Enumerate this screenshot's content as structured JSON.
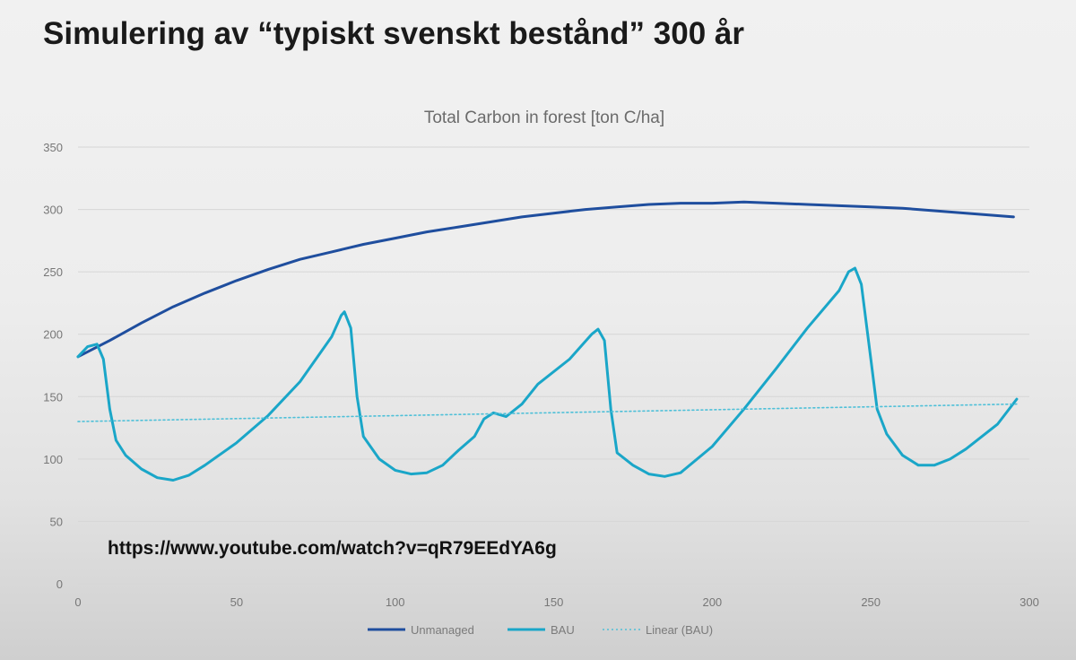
{
  "slide": {
    "title": "Simulering av “typiskt svenskt bestånd” 300 år",
    "url": "https://www.youtube.com/watch?v=qR79EEdYA6g"
  },
  "chart_data": {
    "type": "line",
    "title": "Total Carbon in forest [ton C/ha]",
    "xlabel": "",
    "ylabel": "",
    "xlim": [
      0,
      300
    ],
    "ylim": [
      0,
      350
    ],
    "x_ticks": [
      0,
      50,
      100,
      150,
      200,
      250,
      300
    ],
    "y_ticks": [
      0,
      50,
      100,
      150,
      200,
      250,
      300,
      350
    ],
    "grid": "horizontal",
    "legend_position": "bottom",
    "series": [
      {
        "name": "Unmanaged",
        "style": "solid",
        "color": "#1f4e9e",
        "points": [
          [
            0,
            182
          ],
          [
            10,
            195
          ],
          [
            20,
            209
          ],
          [
            30,
            222
          ],
          [
            40,
            233
          ],
          [
            50,
            243
          ],
          [
            60,
            252
          ],
          [
            70,
            260
          ],
          [
            80,
            266
          ],
          [
            90,
            272
          ],
          [
            100,
            277
          ],
          [
            110,
            282
          ],
          [
            120,
            286
          ],
          [
            130,
            290
          ],
          [
            140,
            294
          ],
          [
            150,
            297
          ],
          [
            160,
            300
          ],
          [
            170,
            302
          ],
          [
            180,
            304
          ],
          [
            190,
            305
          ],
          [
            200,
            305
          ],
          [
            210,
            306
          ],
          [
            220,
            305
          ],
          [
            230,
            304
          ],
          [
            240,
            303
          ],
          [
            250,
            302
          ],
          [
            260,
            301
          ],
          [
            270,
            299
          ],
          [
            280,
            297
          ],
          [
            290,
            295
          ],
          [
            295,
            294
          ]
        ]
      },
      {
        "name": "BAU",
        "style": "solid",
        "color": "#1aa6c8",
        "points": [
          [
            0,
            182
          ],
          [
            3,
            190
          ],
          [
            6,
            192
          ],
          [
            8,
            180
          ],
          [
            10,
            140
          ],
          [
            12,
            115
          ],
          [
            15,
            103
          ],
          [
            20,
            92
          ],
          [
            25,
            85
          ],
          [
            30,
            83
          ],
          [
            35,
            87
          ],
          [
            40,
            95
          ],
          [
            50,
            113
          ],
          [
            60,
            135
          ],
          [
            70,
            162
          ],
          [
            80,
            198
          ],
          [
            83,
            215
          ],
          [
            84,
            218
          ],
          [
            86,
            205
          ],
          [
            88,
            150
          ],
          [
            90,
            118
          ],
          [
            95,
            100
          ],
          [
            100,
            91
          ],
          [
            105,
            88
          ],
          [
            110,
            89
          ],
          [
            115,
            95
          ],
          [
            120,
            107
          ],
          [
            125,
            118
          ],
          [
            128,
            132
          ],
          [
            131,
            137
          ],
          [
            135,
            134
          ],
          [
            140,
            144
          ],
          [
            145,
            160
          ],
          [
            155,
            180
          ],
          [
            162,
            200
          ],
          [
            164,
            204
          ],
          [
            166,
            195
          ],
          [
            168,
            140
          ],
          [
            170,
            105
          ],
          [
            175,
            95
          ],
          [
            180,
            88
          ],
          [
            185,
            86
          ],
          [
            190,
            89
          ],
          [
            200,
            110
          ],
          [
            210,
            140
          ],
          [
            220,
            172
          ],
          [
            230,
            205
          ],
          [
            240,
            235
          ],
          [
            243,
            250
          ],
          [
            245,
            253
          ],
          [
            247,
            240
          ],
          [
            250,
            180
          ],
          [
            252,
            140
          ],
          [
            255,
            120
          ],
          [
            260,
            103
          ],
          [
            265,
            95
          ],
          [
            270,
            95
          ],
          [
            275,
            100
          ],
          [
            280,
            108
          ],
          [
            290,
            128
          ],
          [
            296,
            148
          ]
        ]
      },
      {
        "name": "Linear (BAU)",
        "style": "dotted",
        "color": "#4fc0d8",
        "points": [
          [
            0,
            130
          ],
          [
            296,
            144
          ]
        ]
      }
    ]
  }
}
